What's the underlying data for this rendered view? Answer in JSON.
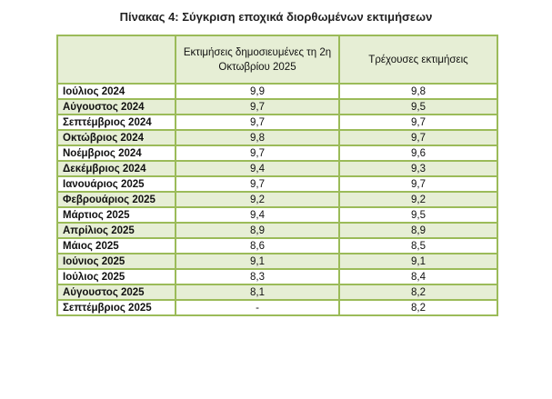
{
  "title": "Πίνακας 4: Σύγκριση εποχικά διορθωμένων εκτιμήσεων",
  "columns": [
    "",
    "Εκτιμήσεις δημοσιευμένες τη 2η Οκτωβρίου 2025",
    "Τρέχουσες εκτιμήσεις"
  ],
  "rows": [
    [
      "Ιούλιος 2024",
      "9,9",
      "9,8"
    ],
    [
      "Αύγουστος 2024",
      "9,7",
      "9,5"
    ],
    [
      "Σεπτέμβριος 2024",
      "9,7",
      "9,7"
    ],
    [
      "Οκτώβριος 2024",
      "9,8",
      "9,7"
    ],
    [
      "Νοέμβριος 2024",
      "9,7",
      "9,6"
    ],
    [
      "Δεκέμβριος 2024",
      "9,4",
      "9,3"
    ],
    [
      "Ιανουάριος 2025",
      "9,7",
      "9,7"
    ],
    [
      "Φεβρουάριος 2025",
      "9,2",
      "9,2"
    ],
    [
      "Μάρτιος 2025",
      "9,4",
      "9,5"
    ],
    [
      "Απρίλιος 2025",
      "8,9",
      "8,9"
    ],
    [
      "Μάιος 2025",
      "8,6",
      "8,5"
    ],
    [
      "Ιούνιος 2025",
      "9,1",
      "9,1"
    ],
    [
      "Ιούλιος 2025",
      "8,3",
      "8,4"
    ],
    [
      "Αύγουστος 2025",
      "8,1",
      "8,2"
    ],
    [
      "Σεπτέμβριος 2025",
      "-",
      "8,2"
    ]
  ]
}
